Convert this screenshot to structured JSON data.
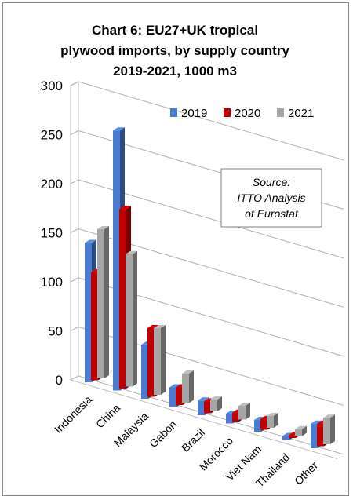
{
  "chart_data": {
    "type": "bar",
    "title_lines": [
      "Chart 6: EU27+UK tropical",
      "plywood imports, by supply country",
      "2019-2021, 1000 m3"
    ],
    "categories": [
      "Indonesia",
      "China",
      "Malaysia",
      "Gabon",
      "Brazil",
      "Morocco",
      "Viet Nam",
      "Thailand",
      "Other"
    ],
    "series": [
      {
        "name": "2019",
        "values": [
          142,
          265,
          55,
          20,
          15,
          10,
          12,
          4,
          25
        ]
      },
      {
        "name": "2020",
        "values": [
          110,
          183,
          70,
          18,
          12,
          9,
          11,
          3,
          23
        ]
      },
      {
        "name": "2021",
        "values": [
          152,
          135,
          68,
          30,
          12,
          14,
          12,
          7,
          27
        ]
      }
    ],
    "yticks": [
      "0",
      "50",
      "100",
      "150",
      "200",
      "250",
      "300"
    ],
    "ylim": [
      0,
      300
    ],
    "grid": true,
    "legend_position": "top-right",
    "colors": {
      "2019": "#4a7bd0",
      "2020": "#c00000",
      "2021": "#a6a6a6"
    },
    "annotation": {
      "lines": [
        "Source:",
        "ITTO Analysis",
        "of Eurostat"
      ]
    }
  }
}
